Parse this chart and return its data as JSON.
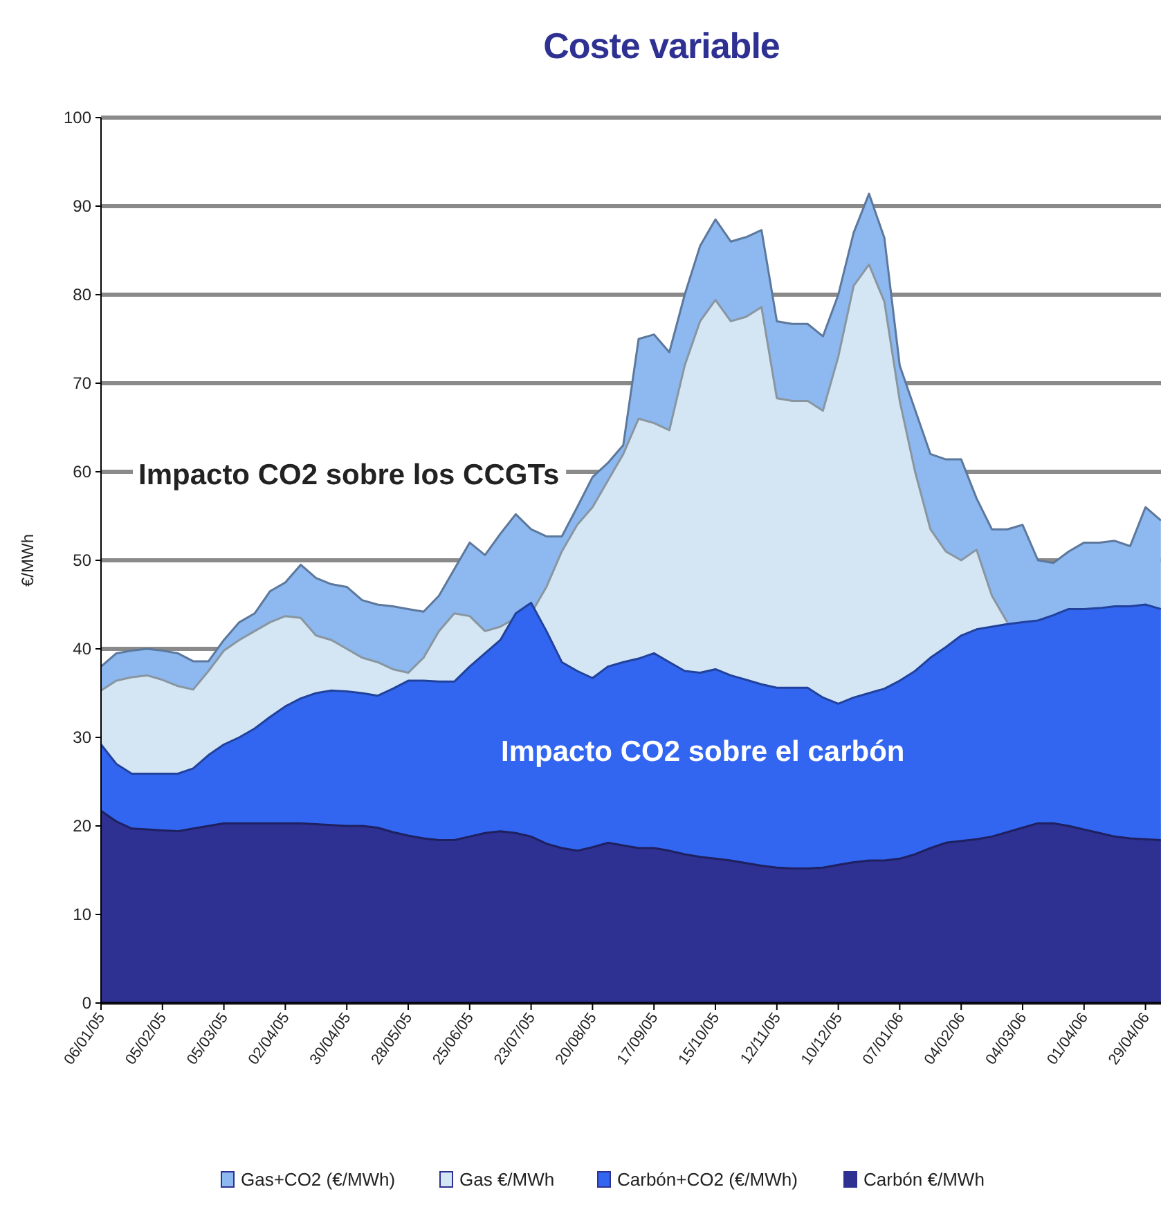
{
  "chart_data": {
    "type": "area",
    "title": "Coste variable",
    "ylabel": "€/MWh",
    "categories": [
      "06/01/05",
      null,
      null,
      null,
      "05/02/05",
      null,
      null,
      null,
      "05/03/05",
      null,
      null,
      null,
      "02/04/05",
      null,
      null,
      null,
      "30/04/05",
      null,
      null,
      null,
      "28/05/05",
      null,
      null,
      null,
      "25/06/05",
      null,
      null,
      null,
      "23/07/05",
      null,
      null,
      null,
      "20/08/05",
      null,
      null,
      null,
      "17/09/05",
      null,
      null,
      null,
      "15/10/05",
      null,
      null,
      null,
      "12/11/05",
      null,
      null,
      null,
      "10/12/05",
      null,
      null,
      null,
      "07/01/06",
      null,
      null,
      null,
      "04/02/06",
      null,
      null,
      null,
      "04/03/06",
      null,
      null,
      null,
      "01/04/06",
      null,
      null,
      null,
      "29/04/06",
      null
    ],
    "series": [
      {
        "name": "Gas+CO2 (€/MWh)",
        "color": "#8db8f0",
        "values": [
          38,
          39.5,
          39.8,
          40,
          39.8,
          39.5,
          38.6,
          38.6,
          41,
          43,
          44,
          46.5,
          47.5,
          49.5,
          48,
          47.3,
          47,
          45.5,
          45,
          44.8,
          44.5,
          44.2,
          46,
          49,
          52,
          50.6,
          53,
          55.2,
          53.5,
          52.7,
          52.7,
          56,
          59.4,
          61,
          63,
          75,
          75.5,
          73.5,
          80,
          85.5,
          88.5,
          86,
          86.5,
          87.3,
          77,
          76.7,
          76.7,
          75.3,
          80,
          87,
          91.4,
          86.4,
          72,
          67,
          62,
          61.4,
          61.4,
          57,
          53.5,
          53.5,
          54,
          50,
          49.7,
          51,
          52,
          52,
          52.2,
          51.6,
          56,
          54.5
        ]
      },
      {
        "name": "Gas €/MWh",
        "color": "#d4e6f4",
        "values": [
          35.3,
          36.4,
          36.8,
          37,
          36.5,
          35.8,
          35.4,
          37.5,
          39.8,
          41,
          42,
          43,
          43.7,
          43.5,
          41.5,
          41,
          40,
          39,
          38.5,
          37.7,
          37.3,
          39,
          42,
          44,
          43.7,
          42,
          42.5,
          43.5,
          44,
          47,
          51,
          54,
          56,
          59,
          62,
          66,
          65.5,
          64.7,
          72,
          77,
          79.4,
          77,
          77.5,
          78.6,
          68.3,
          68,
          68,
          66.9,
          73,
          81,
          83.4,
          79.2,
          68,
          60,
          53.5,
          51,
          50,
          51.2,
          46,
          43,
          null,
          null,
          null,
          null,
          null,
          null,
          null,
          null,
          null,
          null
        ]
      },
      {
        "name": "Carbón+CO2 (€/MWh)",
        "color": "#3366f0",
        "values": [
          29.2,
          27,
          25.9,
          25.9,
          25.9,
          25.9,
          26.5,
          28,
          29.2,
          30,
          31,
          32.3,
          33.5,
          34.4,
          35,
          35.3,
          35.2,
          35,
          34.7,
          35.5,
          36.4,
          36.4,
          36.3,
          36.3,
          38,
          39.5,
          41,
          44,
          45.2,
          42,
          38.5,
          37.5,
          36.7,
          38,
          38.5,
          38.9,
          39.5,
          38.5,
          37.5,
          37.3,
          37.7,
          37,
          36.5,
          36,
          35.6,
          35.6,
          35.6,
          34.5,
          33.8,
          34.5,
          35,
          35.5,
          36.4,
          37.5,
          39,
          40.2,
          41.5,
          42.2,
          42.5,
          42.8,
          43,
          43.2,
          43.8,
          44.5,
          44.5,
          44.6,
          44.8,
          44.8,
          45,
          44.5
        ]
      },
      {
        "name": "Carbón €/MWh",
        "color": "#2e3192",
        "values": [
          21.7,
          20.5,
          19.7,
          19.6,
          19.5,
          19.4,
          19.7,
          20,
          20.3,
          20.3,
          20.3,
          20.3,
          20.3,
          20.3,
          20.2,
          20.1,
          20,
          20,
          19.8,
          19.3,
          18.9,
          18.6,
          18.4,
          18.4,
          18.8,
          19.2,
          19.4,
          19.2,
          18.8,
          18,
          17.5,
          17.2,
          17.6,
          18.1,
          17.8,
          17.5,
          17.5,
          17.2,
          16.8,
          16.5,
          16.3,
          16.1,
          15.8,
          15.5,
          15.3,
          15.2,
          15.2,
          15.3,
          15.6,
          15.9,
          16.1,
          16.1,
          16.3,
          16.8,
          17.5,
          18.1,
          18.3,
          18.5,
          18.8,
          19.3,
          19.8,
          20.3,
          20.3,
          20,
          19.6,
          19.2,
          18.8,
          18.6,
          18.5,
          18.4
        ]
      }
    ],
    "annotations": [
      "Impacto CO2 sobre los CCGTs",
      "Impacto CO2 sobre el carbón"
    ],
    "ylim": [
      0,
      100
    ],
    "yticks": [
      0,
      10,
      20,
      30,
      40,
      50,
      60,
      70,
      80,
      90,
      100
    ],
    "grid": "y",
    "legend": "bottom"
  }
}
